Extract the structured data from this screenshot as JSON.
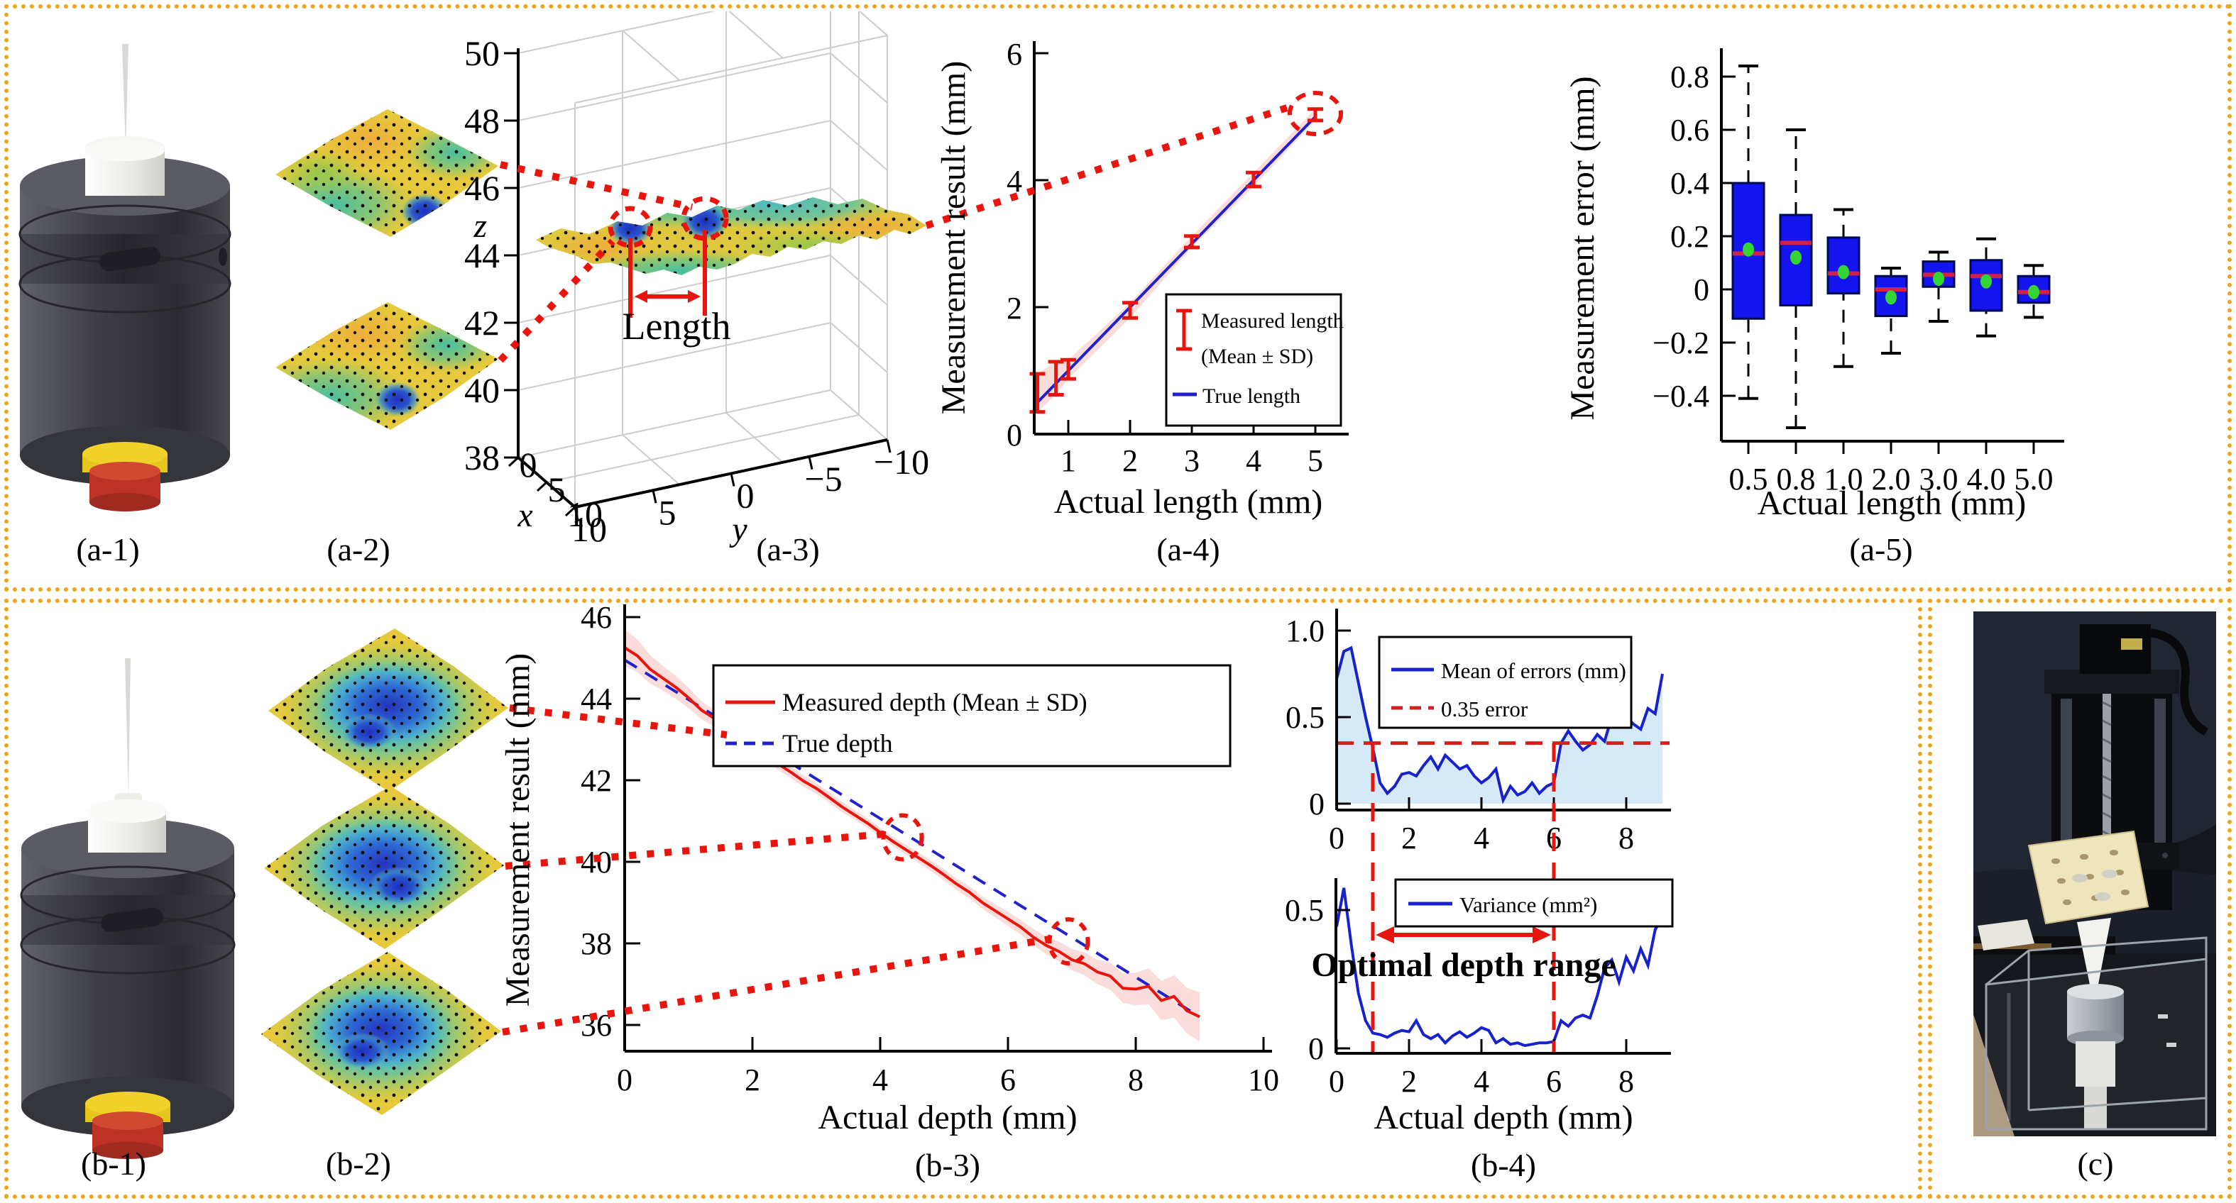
{
  "colors": {
    "border": "#EFA51B",
    "true_blue": "#2222CC",
    "measure_red": "#E8150D",
    "band_pink": "rgba(242,158,148,0.35)",
    "box_fill": "#1414EE",
    "median_red": "#D42045",
    "mean_green": "#35D435",
    "area_blue": "#D6E9F7",
    "threshold_red": "#D62020"
  },
  "panels": {
    "a1": {
      "label": "(a-1)"
    },
    "a2": {
      "label": "(a-2)"
    },
    "a3": {
      "label": "(a-3)",
      "x_axis": "x",
      "y_axis": "y",
      "z_axis": "z",
      "z_ticks": [
        "50",
        "48",
        "46",
        "44",
        "42",
        "40",
        "38"
      ],
      "x_ticks": [
        "0",
        "5",
        "10"
      ],
      "y_ticks": [
        "10",
        "5",
        "0",
        "−5",
        "−10"
      ],
      "annotation": "Length"
    },
    "a4": {
      "label": "(a-4)",
      "xlabel": "Actual length (mm)",
      "ylabel": "Measurement result (mm)"
    },
    "a5": {
      "label": "(a-5)",
      "xlabel": "Actual length (mm)",
      "ylabel": "Measurement error (mm)"
    },
    "b1": {
      "label": "(b-1)"
    },
    "b2": {
      "label": "(b-2)"
    },
    "b3": {
      "label": "(b-3)",
      "xlabel": "Actual depth (mm)",
      "ylabel": "Measurement result (mm)"
    },
    "b4": {
      "label": "(b-4)",
      "xlabel": "Actual depth (mm)",
      "annotation": "Optimal depth range"
    },
    "c": {
      "label": "(c)"
    }
  },
  "chart_data": [
    {
      "id": "a4",
      "type": "line",
      "title": "",
      "xlabel": "Actual length (mm)",
      "ylabel": "Measurement result (mm)",
      "xlim": [
        0.45,
        5.5
      ],
      "ylim": [
        0,
        6
      ],
      "x_ticks": [
        1,
        2,
        3,
        4,
        5
      ],
      "y_ticks": [
        0,
        2,
        4,
        6
      ],
      "errorbar": {
        "x": [
          0.5,
          0.8,
          1,
          2,
          3,
          4,
          5
        ],
        "mean": [
          0.65,
          0.88,
          1.02,
          1.95,
          3.03,
          4.01,
          5.03
        ],
        "sd": [
          0.3,
          0.26,
          0.15,
          0.12,
          0.09,
          0.11,
          0.09
        ]
      },
      "true_line": {
        "x": [
          0.5,
          5
        ],
        "y": [
          0.5,
          5
        ]
      },
      "legend": [
        "Measured length",
        "(Mean ± SD)",
        "True length"
      ],
      "legend_position": "lower right",
      "circle": {
        "x": 5,
        "y": 5.05
      }
    },
    {
      "id": "a5",
      "type": "boxplot",
      "xlabel": "Actual length (mm)",
      "ylabel": "Measurement error (mm)",
      "categories": [
        "0.5",
        "0.8",
        "1.0",
        "2.0",
        "3.0",
        "4.0",
        "5.0"
      ],
      "y_tick_labels": [
        "0.8",
        "0.6",
        "0.4",
        "0.2",
        "0",
        "−0.2",
        "−0.4"
      ],
      "y_ticks_num": [
        0.8,
        0.6,
        0.4,
        0.2,
        0,
        -0.2,
        -0.4
      ],
      "ylim": [
        -0.62,
        0.9
      ],
      "boxes": [
        {
          "whisker_low": -0.41,
          "q1": -0.11,
          "median": 0.135,
          "mean": 0.15,
          "q3": 0.4,
          "whisker_high": 0.84
        },
        {
          "whisker_low": -0.52,
          "q1": -0.06,
          "median": 0.175,
          "mean": 0.12,
          "q3": 0.28,
          "whisker_high": 0.6
        },
        {
          "whisker_low": -0.29,
          "q1": -0.015,
          "median": 0.06,
          "mean": 0.065,
          "q3": 0.195,
          "whisker_high": 0.3
        },
        {
          "whisker_low": -0.24,
          "q1": -0.1,
          "median": 0.0,
          "mean": -0.03,
          "q3": 0.05,
          "whisker_high": 0.08
        },
        {
          "whisker_low": -0.12,
          "q1": 0.01,
          "median": 0.055,
          "mean": 0.04,
          "q3": 0.105,
          "whisker_high": 0.14
        },
        {
          "whisker_low": -0.175,
          "q1": -0.08,
          "median": 0.05,
          "mean": 0.03,
          "q3": 0.11,
          "whisker_high": 0.19
        },
        {
          "whisker_low": -0.105,
          "q1": -0.05,
          "median": -0.01,
          "mean": -0.01,
          "q3": 0.05,
          "whisker_high": 0.09
        }
      ]
    },
    {
      "id": "b3",
      "type": "line",
      "xlabel": "Actual depth (mm)",
      "ylabel": "Measurement result (mm)",
      "xlim": [
        0,
        10
      ],
      "ylim": [
        35.3,
        46.3
      ],
      "x_ticks": [
        0,
        2,
        4,
        6,
        8,
        10
      ],
      "y_ticks": [
        46,
        44,
        42,
        40,
        38,
        36
      ],
      "x_step": 0.2,
      "measured": [
        45.25,
        45.05,
        44.72,
        44.5,
        44.28,
        44.02,
        43.72,
        43.52,
        43.3,
        43.1,
        42.85,
        42.62,
        42.4,
        42.2,
        41.98,
        41.8,
        41.58,
        41.35,
        41.15,
        40.95,
        40.72,
        40.5,
        40.3,
        40.1,
        39.9,
        39.68,
        39.45,
        39.25,
        39.0,
        38.8,
        38.6,
        38.4,
        38.15,
        37.95,
        37.8,
        37.6,
        37.5,
        37.3,
        37.2,
        36.9,
        36.88,
        36.95,
        36.6,
        36.7,
        36.35,
        36.2
      ],
      "sd": [
        0.45,
        0.4,
        0.35,
        0.3,
        0.28,
        0.25,
        0.22,
        0.2,
        0.18,
        0.17,
        0.16,
        0.15,
        0.15,
        0.14,
        0.14,
        0.13,
        0.13,
        0.13,
        0.12,
        0.12,
        0.12,
        0.12,
        0.12,
        0.13,
        0.13,
        0.14,
        0.14,
        0.15,
        0.15,
        0.16,
        0.17,
        0.18,
        0.2,
        0.22,
        0.24,
        0.26,
        0.28,
        0.3,
        0.33,
        0.36,
        0.4,
        0.44,
        0.48,
        0.52,
        0.56,
        0.6
      ],
      "true_line": {
        "x": [
          0,
          9
        ],
        "y": [
          44.95,
          36.2
        ]
      },
      "legend": [
        "Measured depth (Mean ± SD)",
        "True depth"
      ],
      "circles": [
        {
          "x": 1.9,
          "y": 43.0
        },
        {
          "x": 4.35,
          "y": 40.6
        },
        {
          "x": 6.95,
          "y": 38.05
        }
      ]
    },
    {
      "id": "b4m",
      "type": "line",
      "ylabel": "",
      "xlabel": "",
      "xlim": [
        0,
        9.2
      ],
      "ylim": [
        0,
        1.12
      ],
      "x_ticks": [
        0,
        2,
        4,
        6,
        8
      ],
      "y_tick_labels": [
        "0",
        "0.5",
        "1.0"
      ],
      "y_ticks_num": [
        0,
        0.5,
        1.0
      ],
      "x_step": 0.2,
      "values": [
        0.72,
        0.88,
        0.9,
        0.7,
        0.5,
        0.32,
        0.12,
        0.06,
        0.1,
        0.17,
        0.18,
        0.16,
        0.22,
        0.27,
        0.2,
        0.28,
        0.24,
        0.2,
        0.22,
        0.16,
        0.12,
        0.15,
        0.2,
        0.02,
        0.1,
        0.05,
        0.07,
        0.12,
        0.06,
        0.1,
        0.12,
        0.35,
        0.42,
        0.36,
        0.31,
        0.34,
        0.4,
        0.36,
        0.5,
        0.46,
        0.5,
        0.46,
        0.43,
        0.55,
        0.52,
        0.75
      ],
      "threshold": 0.35,
      "depth_range": [
        1,
        6
      ],
      "legend": [
        "Mean of errors (mm)",
        "0.35 error"
      ]
    },
    {
      "id": "b4v",
      "type": "line",
      "xlabel": "Actual depth (mm)",
      "xlim": [
        0,
        9.2
      ],
      "ylim": [
        0,
        0.62
      ],
      "x_ticks": [
        0,
        2,
        4,
        6,
        8
      ],
      "y_tick_labels": [
        "0",
        "0.5"
      ],
      "y_ticks_num": [
        0,
        0.5
      ],
      "x_step": 0.2,
      "values": [
        0.44,
        0.58,
        0.38,
        0.2,
        0.1,
        0.055,
        0.05,
        0.04,
        0.055,
        0.065,
        0.06,
        0.1,
        0.05,
        0.035,
        0.05,
        0.02,
        0.045,
        0.06,
        0.04,
        0.055,
        0.075,
        0.065,
        0.02,
        0.035,
        0.015,
        0.02,
        0.01,
        0.015,
        0.02,
        0.02,
        0.025,
        0.1,
        0.08,
        0.11,
        0.12,
        0.11,
        0.19,
        0.29,
        0.32,
        0.24,
        0.33,
        0.28,
        0.36,
        0.3,
        0.43,
        0.47
      ],
      "legend": [
        "Variance (mm²)"
      ],
      "annotation": "Optimal depth range"
    }
  ]
}
